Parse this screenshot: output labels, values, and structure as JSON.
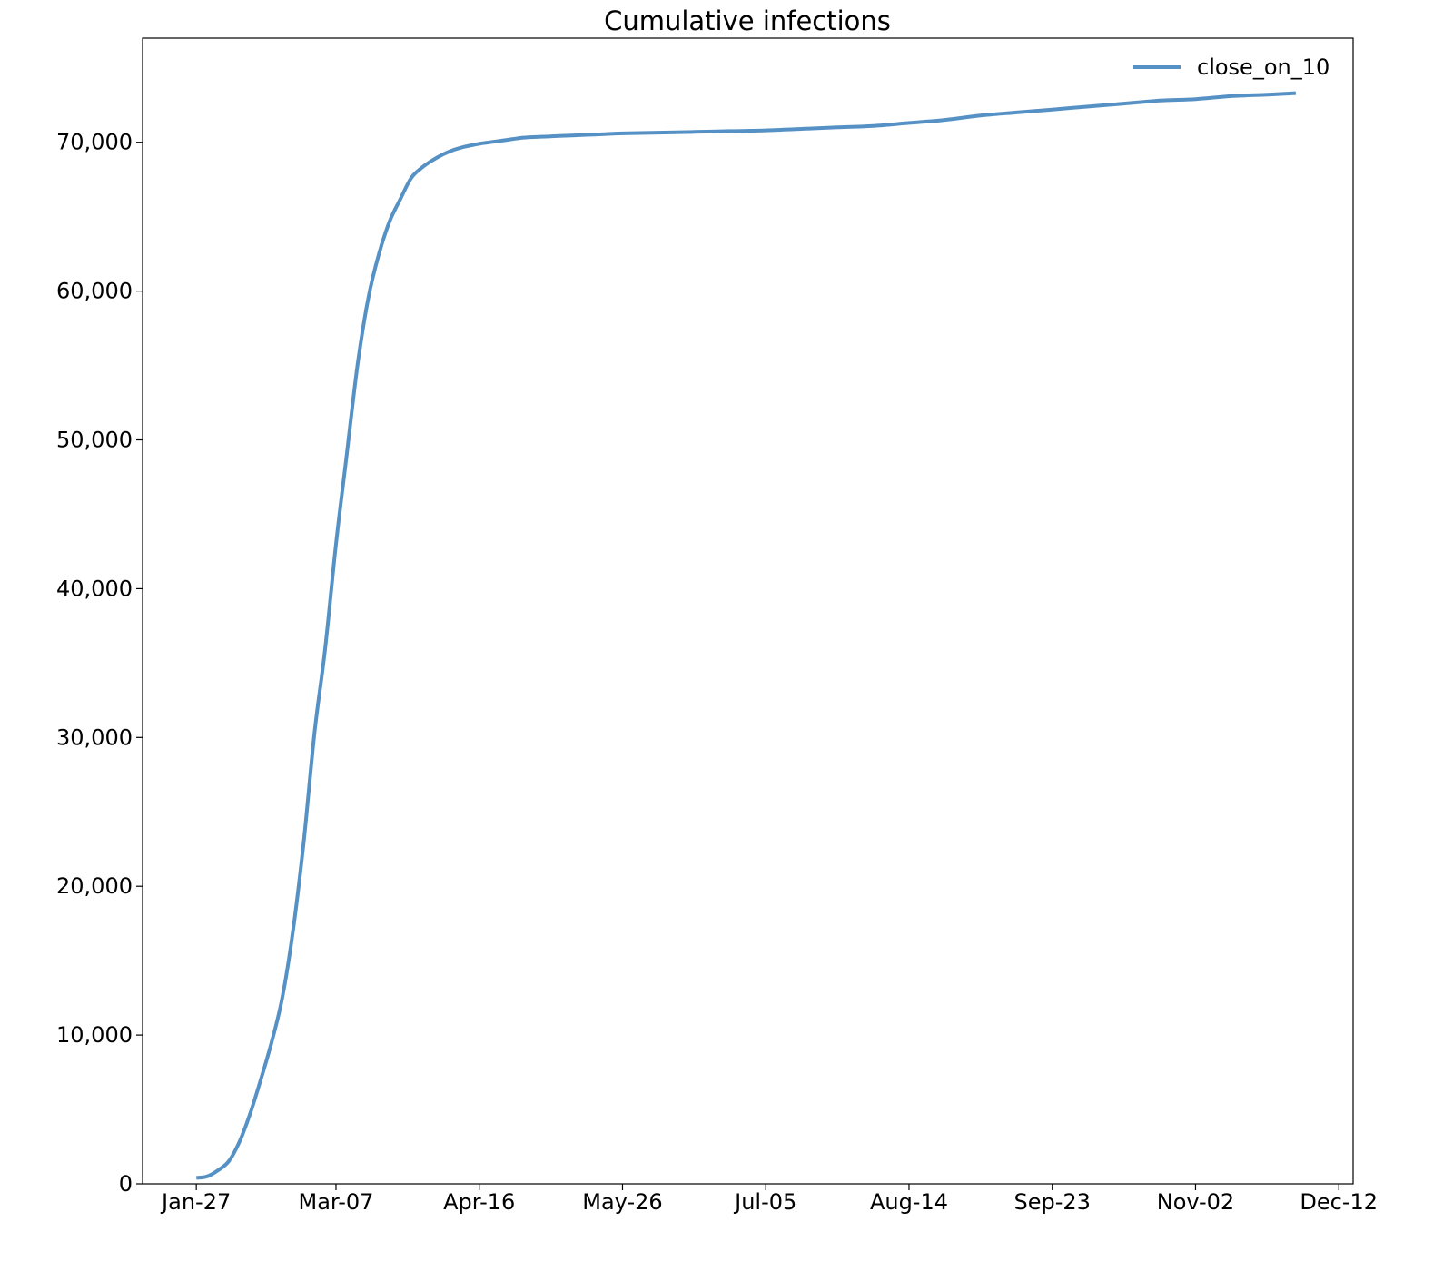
{
  "chart_data": {
    "type": "line",
    "title": "Cumulative infections",
    "xlabel": "",
    "ylabel": "",
    "x_axis_type": "date",
    "year_not_shown": true,
    "xlim": [
      "Jan-12",
      "Dec-16"
    ],
    "ylim": [
      0,
      77000
    ],
    "x_ticks": [
      "Jan-27",
      "Mar-07",
      "Apr-16",
      "May-26",
      "Jul-05",
      "Aug-14",
      "Sep-23",
      "Nov-02",
      "Dec-12"
    ],
    "y_ticks": [
      0,
      10000,
      20000,
      30000,
      40000,
      50000,
      60000,
      70000
    ],
    "y_tick_labels": [
      "0",
      "10,000",
      "20,000",
      "30,000",
      "40,000",
      "50,000",
      "60,000",
      "70,000"
    ],
    "grid": false,
    "legend_position": "top-right",
    "series": [
      {
        "name": "close_on_10",
        "color": "#5591c4",
        "x": [
          "Jan-27",
          "Jan-30",
          "Feb-02",
          "Feb-05",
          "Feb-08",
          "Feb-11",
          "Feb-14",
          "Feb-17",
          "Feb-20",
          "Feb-23",
          "Feb-26",
          "Mar-01",
          "Mar-04",
          "Mar-07",
          "Mar-10",
          "Mar-13",
          "Mar-16",
          "Mar-19",
          "Mar-22",
          "Mar-25",
          "Mar-28",
          "Mar-31",
          "Apr-03",
          "Apr-06",
          "Apr-09",
          "Apr-12",
          "Apr-16",
          "Apr-19",
          "Apr-22",
          "Apr-25",
          "Apr-28",
          "May-01",
          "May-06",
          "May-11",
          "May-16",
          "May-21",
          "May-26",
          "Jun-05",
          "Jun-15",
          "Jun-25",
          "Jul-05",
          "Jul-15",
          "Jul-25",
          "Aug-04",
          "Aug-14",
          "Aug-24",
          "Sep-03",
          "Sep-13",
          "Sep-23",
          "Oct-03",
          "Oct-13",
          "Oct-23",
          "Nov-02",
          "Nov-12",
          "Nov-22",
          "Nov-30"
        ],
        "y": [
          400,
          500,
          900,
          1500,
          2800,
          4700,
          7000,
          9500,
          12500,
          17000,
          23000,
          30300,
          36000,
          43000,
          49000,
          55000,
          59500,
          62500,
          64700,
          66200,
          67600,
          68300,
          68800,
          69200,
          69500,
          69700,
          69900,
          70000,
          70100,
          70200,
          70300,
          70350,
          70400,
          70450,
          70500,
          70550,
          70600,
          70650,
          70700,
          70750,
          70800,
          70900,
          71000,
          71100,
          71300,
          71500,
          71800,
          72000,
          72200,
          72400,
          72600,
          72800,
          72900,
          73100,
          73200,
          73300
        ]
      }
    ]
  }
}
